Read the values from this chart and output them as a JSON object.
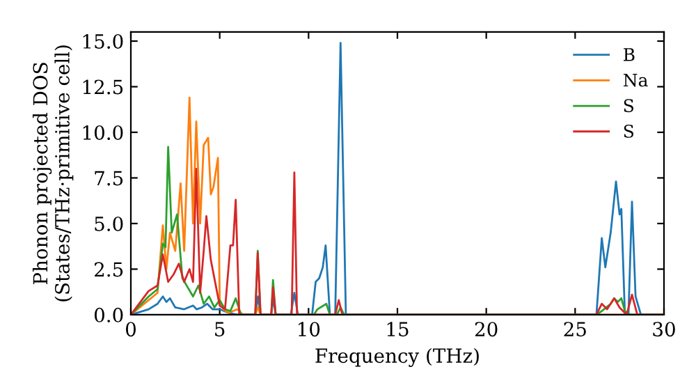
{
  "chart_data": {
    "type": "line",
    "xlabel": "Frequency (THz)",
    "ylabel": "Phonon projected DOS\n(States/THz·primitive cell)",
    "xlim": [
      0,
      30
    ],
    "ylim": [
      0,
      15.5
    ],
    "xticks": [
      0,
      5,
      10,
      15,
      20,
      25,
      30
    ],
    "yticks": [
      {
        "value": 0,
        "label": "0.0"
      },
      {
        "value": 2.5,
        "label": "2.5"
      },
      {
        "value": 5,
        "label": "5.0"
      },
      {
        "value": 7.5,
        "label": "7.5"
      },
      {
        "value": 10,
        "label": "10.0"
      },
      {
        "value": 12.5,
        "label": "12.5"
      },
      {
        "value": 15,
        "label": "15.0"
      }
    ],
    "legend": "top right",
    "grid": false,
    "marker": "none",
    "line_style": "solid",
    "series": [
      {
        "name": "B",
        "color": "#1f77b4",
        "x": [
          0,
          1,
          1.5,
          1.8,
          2.0,
          2.2,
          2.5,
          3.0,
          3.5,
          3.7,
          4.0,
          4.3,
          4.6,
          5.0,
          5.5,
          6.0,
          7.0,
          7.15,
          7.3,
          7.9,
          8.0,
          8.15,
          9.0,
          9.2,
          9.4,
          10.2,
          10.4,
          10.6,
          10.8,
          10.96,
          11.2,
          11.5,
          11.8,
          12.1,
          26.2,
          26.5,
          26.7,
          27.0,
          27.3,
          27.5,
          27.6,
          27.8,
          28.0,
          28.2,
          28.4,
          28.7,
          30
        ],
        "values": [
          0,
          0.3,
          0.6,
          1.0,
          0.7,
          0.9,
          0.4,
          0.3,
          0.5,
          0.3,
          0.4,
          0.6,
          0.3,
          0.3,
          0.1,
          0,
          0,
          1.0,
          0,
          0,
          0.9,
          0,
          0,
          1.2,
          0,
          0,
          1.8,
          2.0,
          2.6,
          3.8,
          0,
          0,
          14.9,
          0,
          0,
          4.2,
          2.6,
          4.5,
          7.3,
          5.5,
          5.8,
          0,
          0,
          6.2,
          1.0,
          0,
          0
        ]
      },
      {
        "name": "Na",
        "color": "#ff7f0e",
        "x": [
          0,
          1.0,
          1.5,
          1.8,
          2.0,
          2.2,
          2.5,
          2.8,
          3.0,
          3.3,
          3.5,
          3.68,
          3.9,
          4.1,
          4.35,
          4.5,
          4.65,
          4.9,
          5.0,
          5.2,
          5.5,
          6.0,
          6.3,
          7.0,
          7.15,
          7.3,
          30
        ],
        "values": [
          0,
          0.8,
          1.2,
          4.9,
          2.5,
          4.5,
          3.5,
          7.2,
          3.5,
          11.9,
          5.0,
          10.6,
          5.0,
          9.3,
          9.7,
          6.6,
          7.0,
          8.6,
          0.8,
          0.3,
          0.1,
          0.3,
          0,
          0,
          0.4,
          0,
          0
        ]
      },
      {
        "name": "S",
        "color": "#2ca02c",
        "x": [
          0,
          1.0,
          1.5,
          1.8,
          1.95,
          2.1,
          2.3,
          2.6,
          2.9,
          3.2,
          3.5,
          3.8,
          4.1,
          4.4,
          4.7,
          5.0,
          5.3,
          5.6,
          5.9,
          6.2,
          7.0,
          7.14,
          7.3,
          7.9,
          8.0,
          8.15,
          10.3,
          10.5,
          11.0,
          11.2,
          11.6,
          11.8,
          12.0,
          26.2,
          26.5,
          27.0,
          27.2,
          27.4,
          27.6,
          27.8,
          28.1,
          30
        ],
        "values": [
          0,
          1.0,
          1.4,
          3.9,
          3.7,
          9.2,
          4.5,
          5.5,
          2.0,
          1.5,
          1.0,
          1.6,
          0.6,
          1.0,
          0.4,
          0.8,
          0.3,
          0.2,
          0.9,
          0,
          0,
          3.5,
          0,
          0,
          1.9,
          0,
          0,
          0.3,
          0.6,
          0,
          0,
          0.4,
          0,
          0,
          0.2,
          0.6,
          0.9,
          0.7,
          0.9,
          0.2,
          0,
          0
        ]
      },
      {
        "name": "S",
        "color": "#d62728",
        "x": [
          0,
          1.0,
          1.5,
          1.8,
          2.1,
          2.4,
          2.7,
          3.0,
          3.3,
          3.5,
          3.68,
          3.9,
          4.1,
          4.25,
          4.5,
          4.8,
          5.0,
          5.3,
          5.6,
          5.75,
          5.9,
          6.1,
          7.0,
          7.14,
          7.3,
          7.9,
          8.0,
          8.15,
          9.05,
          9.2,
          9.35,
          11.5,
          11.7,
          11.9,
          26.2,
          26.5,
          26.8,
          27.2,
          27.5,
          27.9,
          28.2,
          28.5,
          30
        ],
        "values": [
          0,
          1.3,
          1.6,
          3.3,
          1.8,
          2.2,
          2.8,
          1.8,
          2.5,
          1.8,
          8.0,
          1.2,
          3.5,
          5.4,
          3.0,
          1.5,
          0.5,
          0.3,
          3.8,
          3.8,
          6.3,
          0,
          0,
          3.4,
          0,
          0,
          1.5,
          0,
          0,
          7.8,
          0,
          0,
          0.8,
          0,
          0,
          0.6,
          0.3,
          0.9,
          0.4,
          0,
          1.1,
          0,
          0
        ]
      }
    ]
  }
}
